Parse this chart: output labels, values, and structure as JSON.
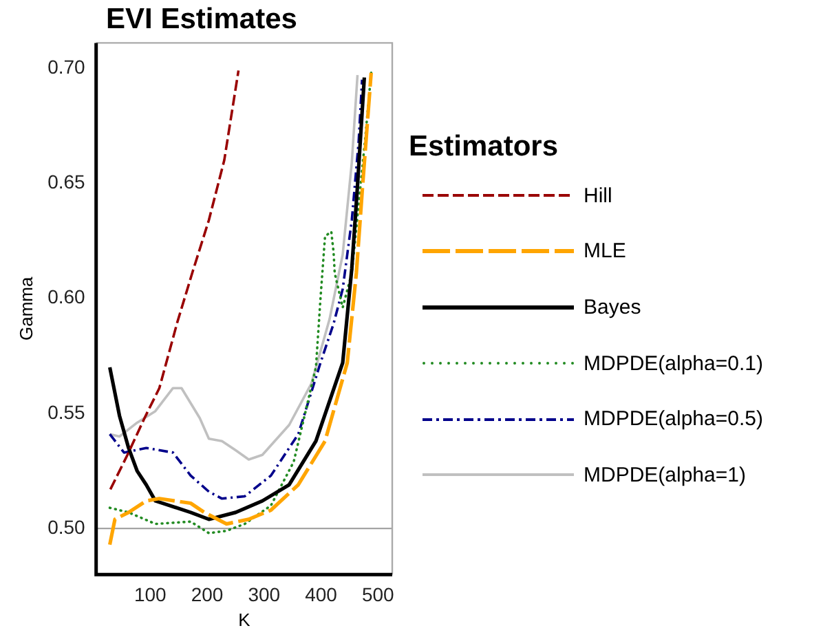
{
  "chart_data": {
    "type": "line",
    "title": "EVI Estimates",
    "xlabel": "K",
    "ylabel": "Gamma",
    "legend_title": "Estimators",
    "legend": "right",
    "grid": false,
    "marker": "none",
    "xlim": [
      5,
      525
    ],
    "xticks": [
      100,
      200,
      300,
      400,
      500
    ],
    "ylim": [
      0.48,
      0.711
    ],
    "yticks": [
      {
        "value": 0.5,
        "label": "0.50"
      },
      {
        "value": 0.55,
        "label": "0.55"
      },
      {
        "value": 0.6,
        "label": "0.60"
      },
      {
        "value": 0.65,
        "label": "0.65"
      },
      {
        "value": 0.7,
        "label": "0.70"
      }
    ],
    "ref_lines": [
      {
        "axis": "y",
        "value": 0.5,
        "color": "#999999"
      }
    ],
    "series": [
      {
        "name": "Hill",
        "color": "#990000",
        "line_style": "dashed",
        "x": [
          30,
          60,
          90,
          116,
          148,
          175,
          203,
          230,
          255
        ],
        "values": [
          0.517,
          0.532,
          0.548,
          0.561,
          0.59,
          0.612,
          0.634,
          0.66,
          0.699
        ]
      },
      {
        "name": "MLE",
        "color": "#ffa500",
        "line_style": "dashed",
        "x": [
          29,
          38,
          62,
          93,
          116,
          171,
          195,
          234,
          273,
          312,
          360,
          407,
          446,
          462,
          473,
          488
        ],
        "values": [
          0.493,
          0.504,
          0.507,
          0.512,
          0.513,
          0.511,
          0.507,
          0.502,
          0.504,
          0.508,
          0.519,
          0.538,
          0.572,
          0.611,
          0.649,
          0.698
        ]
      },
      {
        "name": "Bayes",
        "color": "#000000",
        "line_style": "solid",
        "x": [
          29,
          46,
          62,
          77,
          93,
          109,
          171,
          203,
          250,
          297,
          344,
          391,
          438,
          454,
          464,
          476
        ],
        "values": [
          0.57,
          0.549,
          0.535,
          0.525,
          0.519,
          0.512,
          0.507,
          0.504,
          0.507,
          0.512,
          0.519,
          0.538,
          0.572,
          0.613,
          0.649,
          0.696
        ]
      },
      {
        "name": "MDPDE(alpha=0.1)",
        "color": "#228b22",
        "line_style": "dotted",
        "x": [
          29,
          62,
          109,
          171,
          203,
          234,
          266,
          312,
          352,
          391,
          399,
          407,
          418,
          422,
          424,
          438,
          454,
          477,
          488
        ],
        "values": [
          0.509,
          0.507,
          0.502,
          0.503,
          0.498,
          0.499,
          0.502,
          0.51,
          0.529,
          0.57,
          0.6,
          0.627,
          0.629,
          0.62,
          0.611,
          0.596,
          0.611,
          0.668,
          0.698
        ]
      },
      {
        "name": "MDPDE(alpha=0.5)",
        "color": "#00008b",
        "line_style": "dashed",
        "x": [
          29,
          54,
          93,
          140,
          171,
          203,
          226,
          266,
          312,
          360,
          399,
          422,
          438,
          454,
          466,
          472
        ],
        "values": [
          0.541,
          0.533,
          0.535,
          0.533,
          0.523,
          0.516,
          0.513,
          0.514,
          0.523,
          0.541,
          0.572,
          0.589,
          0.604,
          0.634,
          0.668,
          0.695
        ]
      },
      {
        "name": "MDPDE(alpha=1)",
        "color": "#c0c0c0",
        "line_style": "solid",
        "x": [
          29,
          46,
          77,
          109,
          140,
          155,
          187,
          203,
          226,
          250,
          273,
          297,
          344,
          383,
          415,
          438,
          454,
          464
        ],
        "values": [
          0.541,
          0.54,
          0.546,
          0.551,
          0.561,
          0.561,
          0.548,
          0.539,
          0.538,
          0.534,
          0.53,
          0.532,
          0.545,
          0.563,
          0.591,
          0.619,
          0.659,
          0.697
        ]
      }
    ]
  }
}
